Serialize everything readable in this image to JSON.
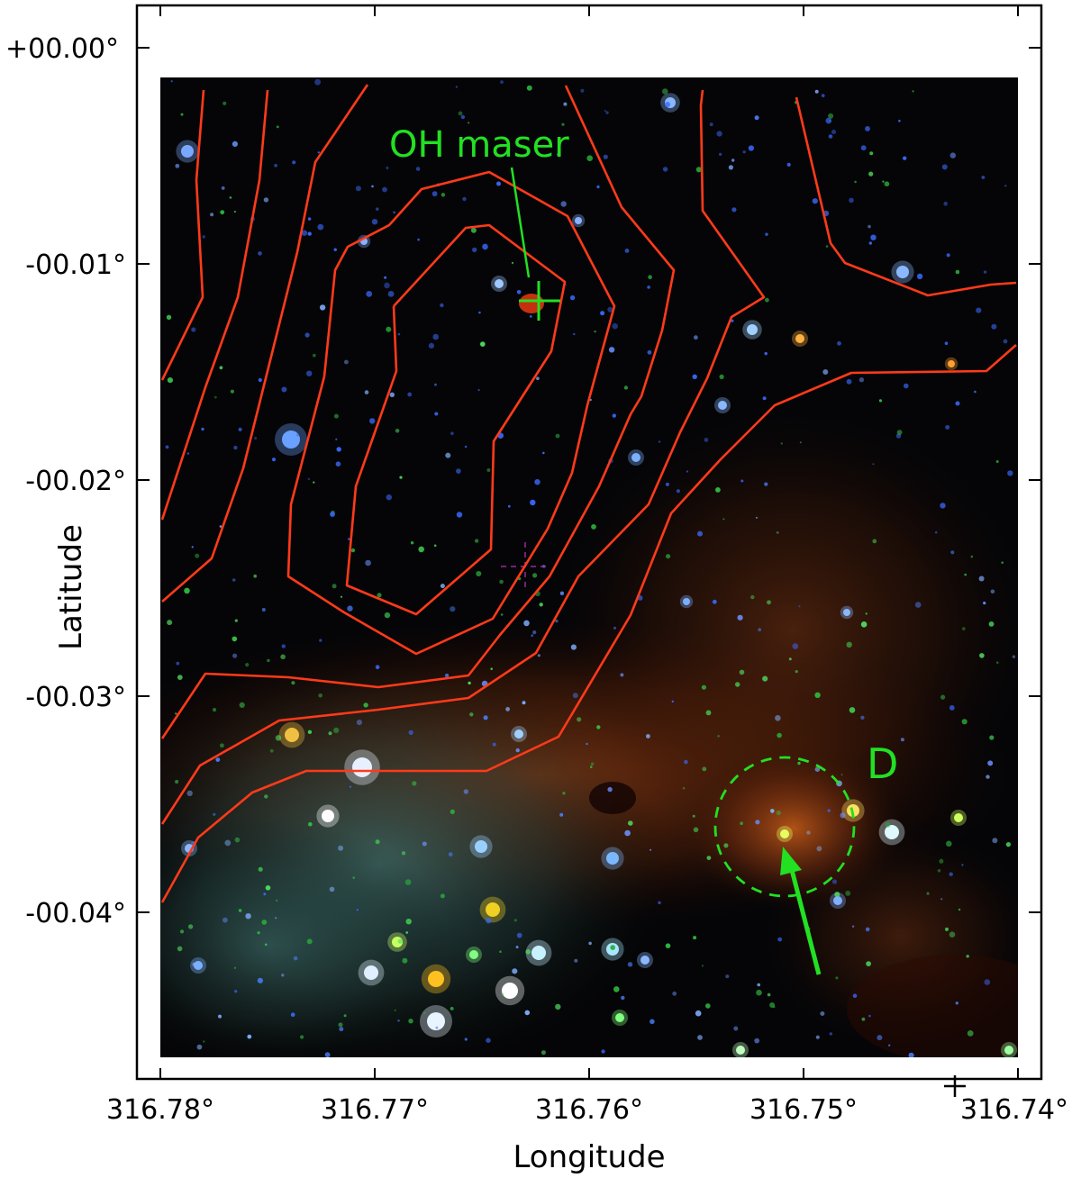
{
  "figure": {
    "axes": {
      "x_label": "Longitude",
      "y_label": "Latitude",
      "x_ticks": [
        "316.78°",
        "316.77°",
        "316.76°",
        "316.75°",
        "316.74°"
      ],
      "y_ticks": [
        "+00.00°",
        "-00.01°",
        "-00.02°",
        "-00.03°",
        "-00.04°"
      ]
    },
    "annotations": {
      "maser_label": "OH maser",
      "region_label": "D"
    },
    "colors": {
      "contour": "#ff3a1a",
      "annotation": "#22e022",
      "background": "#050507"
    }
  }
}
